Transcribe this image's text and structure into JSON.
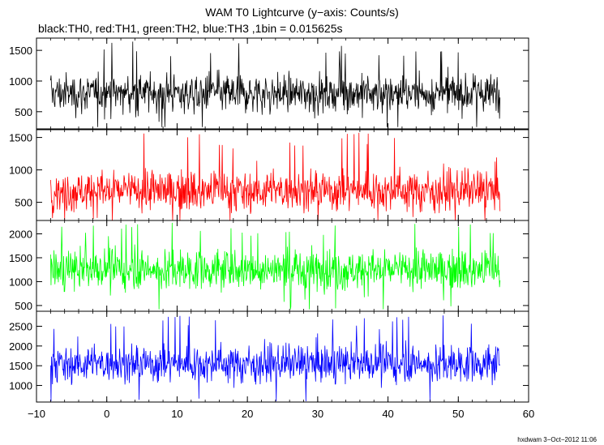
{
  "header": {
    "title": "WAM T0 Lightcurve (y−axis: Counts/s)",
    "subtitle": "black:TH0, red:TH1, green:TH2, blue:TH3 ,1bin = 0.015625s"
  },
  "footer": {
    "stamp": "hxdwam  3−Oct−2012 11:06"
  },
  "chart_data": {
    "type": "line",
    "title": "WAM T0 Lightcurve (y−axis: Counts/s)",
    "subtitle": "black:TH0, red:TH1, green:TH2, blue:TH3 ,1bin = 0.015625s",
    "xlabel": "",
    "ylabel": "Counts/s",
    "xlim": [
      -10,
      60
    ],
    "x_ticks": [
      -10,
      0,
      10,
      20,
      30,
      40,
      50,
      60
    ],
    "x_tick_labels": [
      "−10",
      "0",
      "10",
      "20",
      "30",
      "40",
      "50",
      "60"
    ],
    "x_data_range": [
      -8,
      56
    ],
    "bin_size_s": 0.015625,
    "grid": false,
    "legend": "none",
    "series": [
      {
        "name": "TH0",
        "color": "#000000",
        "ylim": [
          220,
          1700
        ],
        "yticks": [
          500,
          1000,
          1500
        ],
        "mean": 800,
        "typical_range": [
          400,
          1300
        ],
        "max": 1650,
        "min": 250
      },
      {
        "name": "TH1",
        "color": "#ff0000",
        "ylim": [
          220,
          1620
        ],
        "yticks": [
          500,
          1000,
          1500
        ],
        "mean": 680,
        "typical_range": [
          300,
          1200
        ],
        "max": 1600,
        "min": 220
      },
      {
        "name": "TH2",
        "color": "#00ff00",
        "ylim": [
          380,
          2280
        ],
        "yticks": [
          500,
          1000,
          1500,
          2000
        ],
        "mean": 1250,
        "typical_range": [
          700,
          1900
        ],
        "max": 2250,
        "min": 420
      },
      {
        "name": "TH3",
        "color": "#0000ff",
        "ylim": [
          580,
          2880
        ],
        "yticks": [
          1000,
          1500,
          2000,
          2500
        ],
        "mean": 1550,
        "typical_range": [
          950,
          2300
        ],
        "max": 2800,
        "min": 600
      }
    ]
  }
}
